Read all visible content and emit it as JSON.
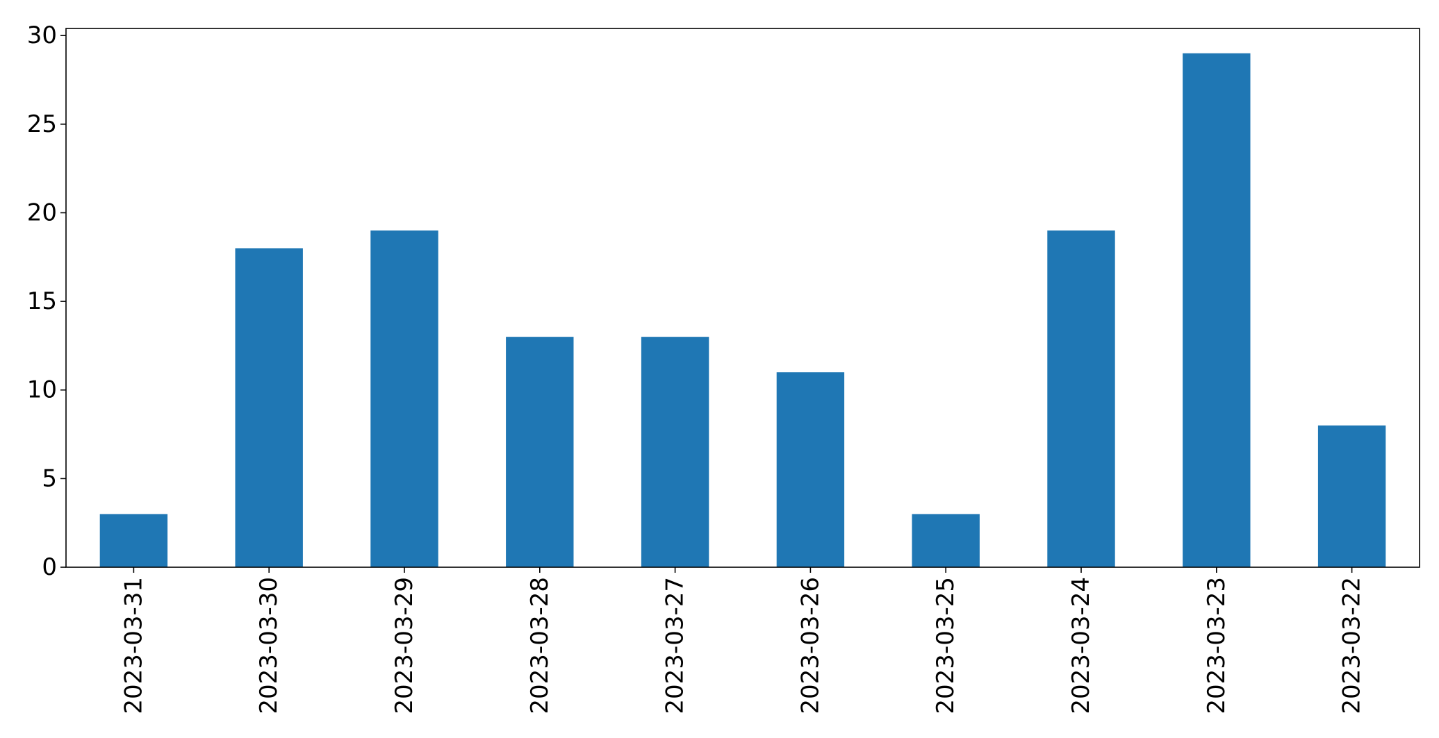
{
  "chart_data": {
    "type": "bar",
    "categories": [
      "2023-03-31",
      "2023-03-30",
      "2023-03-29",
      "2023-03-28",
      "2023-03-27",
      "2023-03-26",
      "2023-03-25",
      "2023-03-24",
      "2023-03-23",
      "2023-03-22"
    ],
    "values": [
      3,
      18,
      19,
      13,
      13,
      11,
      3,
      19,
      29,
      8
    ],
    "ylim": [
      0,
      30.4
    ],
    "yticks": [
      0,
      5,
      10,
      15,
      20,
      25,
      30
    ],
    "xlabel": "",
    "ylabel": "",
    "grid": false,
    "bar_color": "#1f77b4",
    "x_tick_rotation": "vertical"
  }
}
